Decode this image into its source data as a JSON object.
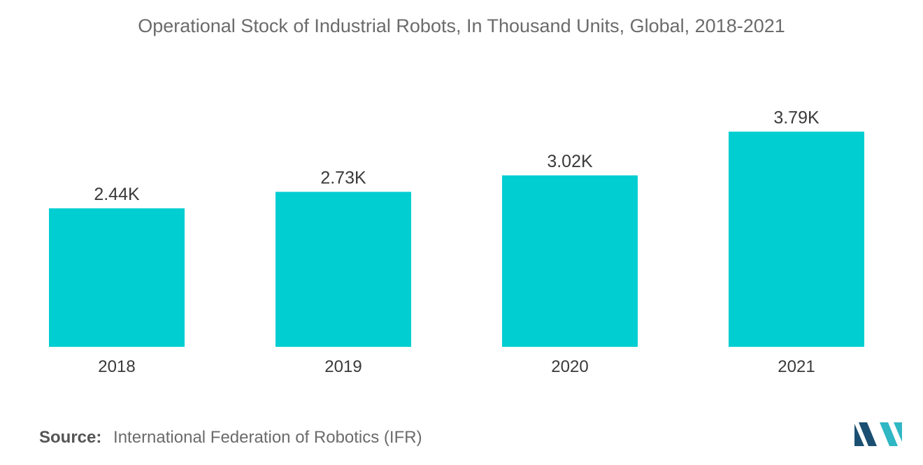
{
  "chart_data": {
    "type": "bar",
    "title": "Operational Stock of Industrial Robots, In Thousand Units, Global, 2018-2021",
    "categories": [
      "2018",
      "2019",
      "2020",
      "2021"
    ],
    "values": [
      2.44,
      2.73,
      3.02,
      3.79
    ],
    "data_labels": [
      "2.44K",
      "2.73K",
      "3.02K",
      "3.79K"
    ],
    "xlabel": "",
    "ylabel": "",
    "ylim": [
      0,
      4.2
    ],
    "grid": false,
    "legend": "none",
    "bar_color": "#00CED1"
  },
  "source": {
    "prefix": "Source:",
    "text": "International Federation of Robotics (IFR)"
  },
  "colors": {
    "logo_dark": "#1B4F72",
    "logo_light": "#2FB7C4"
  }
}
